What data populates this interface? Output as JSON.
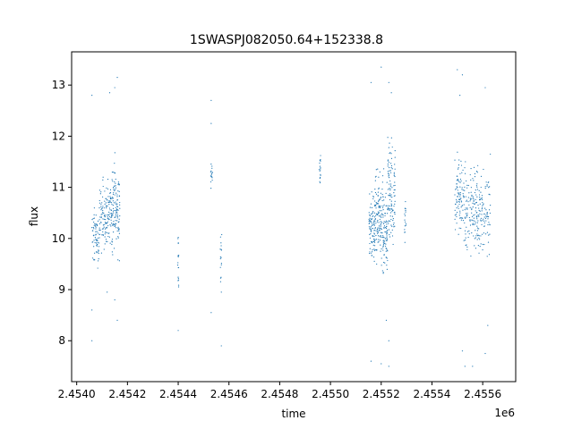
{
  "chart_data": {
    "type": "scatter",
    "title": "1SWASPJ082050.64+152338.8",
    "xlabel": "time",
    "ylabel": "flux",
    "x_offset_label": "1e6",
    "xlim": [
      2.45398,
      2.45573
    ],
    "ylim": [
      7.2,
      13.65
    ],
    "x_ticks": [
      2.454,
      2.4542,
      2.4544,
      2.4546,
      2.4548,
      2.455,
      2.4552,
      2.4554,
      2.4556
    ],
    "x_tick_labels": [
      "2.4540",
      "2.4542",
      "2.4544",
      "2.4546",
      "2.4548",
      "2.4550",
      "2.4552",
      "2.4554",
      "2.4556"
    ],
    "y_ticks": [
      8,
      9,
      10,
      11,
      12,
      13
    ],
    "y_tick_labels": [
      "8",
      "9",
      "10",
      "11",
      "12",
      "13"
    ],
    "grid": false,
    "marker_color": "#1f77b4",
    "series": [
      {
        "clusters": [
          {
            "x_min": 2.45406,
            "x_max": 2.45409,
            "y_center": 10.0,
            "y_spread": 0.45,
            "n": 70
          },
          {
            "x_min": 2.45409,
            "x_max": 2.45412,
            "y_center": 10.45,
            "y_spread": 0.55,
            "n": 80
          },
          {
            "x_min": 2.45412,
            "x_max": 2.45414,
            "y_center": 10.55,
            "y_spread": 0.5,
            "n": 60
          },
          {
            "x_min": 2.45414,
            "x_max": 2.45417,
            "y_center": 10.6,
            "y_spread": 0.7,
            "n": 110
          },
          {
            "x_min": 2.454398,
            "x_max": 2.454402,
            "y_center": 9.6,
            "y_spread": 0.6,
            "n": 18
          },
          {
            "x_min": 2.454528,
            "x_max": 2.454535,
            "y_center": 11.25,
            "y_spread": 0.3,
            "n": 16
          },
          {
            "x_min": 2.454565,
            "x_max": 2.454572,
            "y_center": 9.6,
            "y_spread": 0.45,
            "n": 16
          },
          {
            "x_min": 2.454955,
            "x_max": 2.454962,
            "y_center": 11.4,
            "y_spread": 0.25,
            "n": 18
          },
          {
            "x_min": 2.455152,
            "x_max": 2.455175,
            "y_center": 10.2,
            "y_spread": 0.55,
            "n": 90
          },
          {
            "x_min": 2.455175,
            "x_max": 2.4552,
            "y_center": 10.35,
            "y_spread": 0.7,
            "n": 100
          },
          {
            "x_min": 2.4552,
            "x_max": 2.455225,
            "y_center": 10.2,
            "y_spread": 0.8,
            "n": 100
          },
          {
            "x_min": 2.455225,
            "x_max": 2.455255,
            "y_center": 10.9,
            "y_spread": 0.75,
            "n": 110
          },
          {
            "x_min": 2.455292,
            "x_max": 2.455298,
            "y_center": 10.3,
            "y_spread": 0.35,
            "n": 16
          },
          {
            "x_min": 2.45549,
            "x_max": 2.45552,
            "y_center": 10.9,
            "y_spread": 0.6,
            "n": 80
          },
          {
            "x_min": 2.45552,
            "x_max": 2.45558,
            "y_center": 10.6,
            "y_spread": 0.8,
            "n": 140
          },
          {
            "x_min": 2.45558,
            "x_max": 2.45563,
            "y_center": 10.5,
            "y_spread": 0.7,
            "n": 100
          }
        ],
        "outliers": [
          [
            2.45406,
            12.8
          ],
          [
            2.45406,
            8.6
          ],
          [
            2.45406,
            8.0
          ],
          [
            2.45412,
            8.95
          ],
          [
            2.45413,
            12.85
          ],
          [
            2.45415,
            12.95
          ],
          [
            2.45416,
            13.15
          ],
          [
            2.45416,
            8.4
          ],
          [
            2.45415,
            8.8
          ],
          [
            2.4544,
            8.2
          ],
          [
            2.45453,
            12.7
          ],
          [
            2.45453,
            12.25
          ],
          [
            2.45453,
            8.55
          ],
          [
            2.45457,
            7.9
          ],
          [
            2.45457,
            8.95
          ],
          [
            2.45516,
            13.05
          ],
          [
            2.45516,
            7.6
          ],
          [
            2.4552,
            13.35
          ],
          [
            2.4552,
            7.55
          ],
          [
            2.45523,
            13.05
          ],
          [
            2.45524,
            12.85
          ],
          [
            2.45523,
            7.5
          ],
          [
            2.45523,
            8.0
          ],
          [
            2.45522,
            8.4
          ],
          [
            2.4555,
            13.3
          ],
          [
            2.45551,
            12.8
          ],
          [
            2.45552,
            13.2
          ],
          [
            2.45552,
            7.8
          ],
          [
            2.45553,
            7.5
          ],
          [
            2.45556,
            7.5
          ],
          [
            2.45561,
            12.95
          ],
          [
            2.45561,
            7.75
          ],
          [
            2.45562,
            8.3
          ],
          [
            2.45563,
            11.65
          ]
        ]
      }
    ]
  }
}
